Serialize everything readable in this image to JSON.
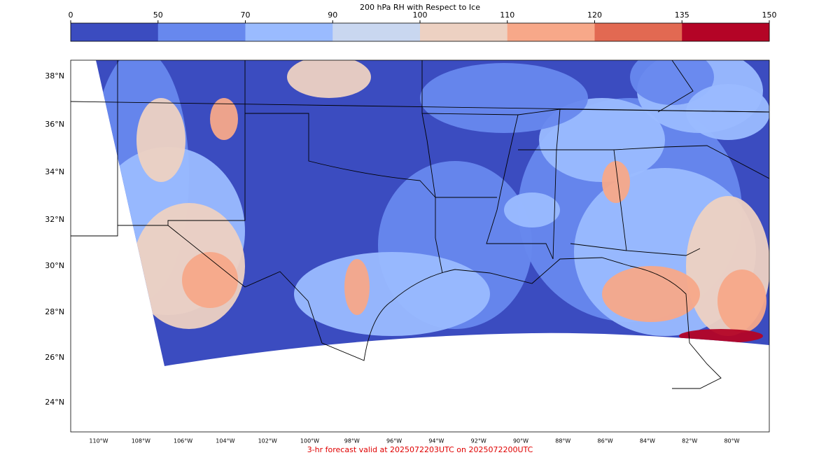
{
  "colorbar": {
    "title": "200 hPa RH with Respect to Ice",
    "ticks": [
      0,
      50,
      70,
      90,
      100,
      110,
      120,
      135,
      150
    ],
    "colors": [
      "#3b4cc0",
      "#6788ee",
      "#9abbff",
      "#c9d7f0",
      "#edd1c2",
      "#f7a889",
      "#e26952",
      "#b40426"
    ]
  },
  "map": {
    "lat_labels": [
      "38°N",
      "36°N",
      "34°N",
      "32°N",
      "30°N",
      "28°N",
      "26°N",
      "24°N"
    ],
    "lon_labels": [
      "110°W",
      "108°W",
      "106°W",
      "104°W",
      "102°W",
      "100°W",
      "98°W",
      "96°W",
      "94°W",
      "92°W",
      "90°W",
      "88°W",
      "86°W",
      "84°W",
      "82°W",
      "80°W"
    ]
  },
  "footer": "3-hr forecast valid at 2025072203UTC on 2025072200UTC"
}
